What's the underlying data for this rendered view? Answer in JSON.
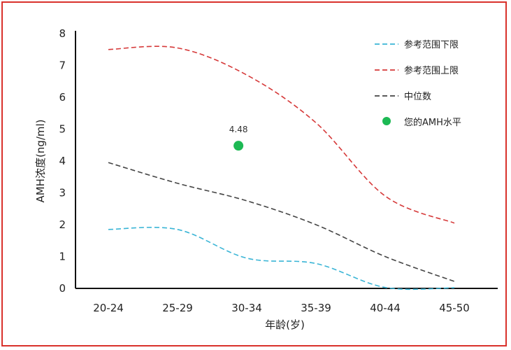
{
  "chart_data": {
    "type": "line",
    "xlabel": "年龄(岁)",
    "ylabel": "AMH浓度(ng/ml)",
    "ylim": [
      0,
      8
    ],
    "yticks": [
      "0",
      "1",
      "2",
      "3",
      "4",
      "5",
      "6",
      "7",
      "8"
    ],
    "categories": [
      "20-24",
      "25-29",
      "30-34",
      "35-39",
      "40-44",
      "45-50"
    ],
    "series": [
      {
        "name": "参考范围下限",
        "color": "#3ab5d6",
        "dash": "dashed",
        "values": [
          1.85,
          1.85,
          0.95,
          0.78,
          0.03,
          0.02
        ]
      },
      {
        "name": "参考范围上限",
        "color": "#d63a3a",
        "dash": "dashed",
        "values": [
          7.5,
          7.55,
          6.7,
          5.2,
          2.9,
          2.05
        ]
      },
      {
        "name": "中位数",
        "color": "#444444",
        "dash": "dashed",
        "values": [
          3.95,
          3.3,
          2.75,
          2.0,
          1.0,
          0.22
        ]
      }
    ],
    "points": [
      {
        "name": "您的AMH水平",
        "color": "#1db954",
        "category": "30-34",
        "offset": -0.12,
        "value": 4.48,
        "label": "4.48"
      }
    ],
    "legend": "top-right"
  }
}
